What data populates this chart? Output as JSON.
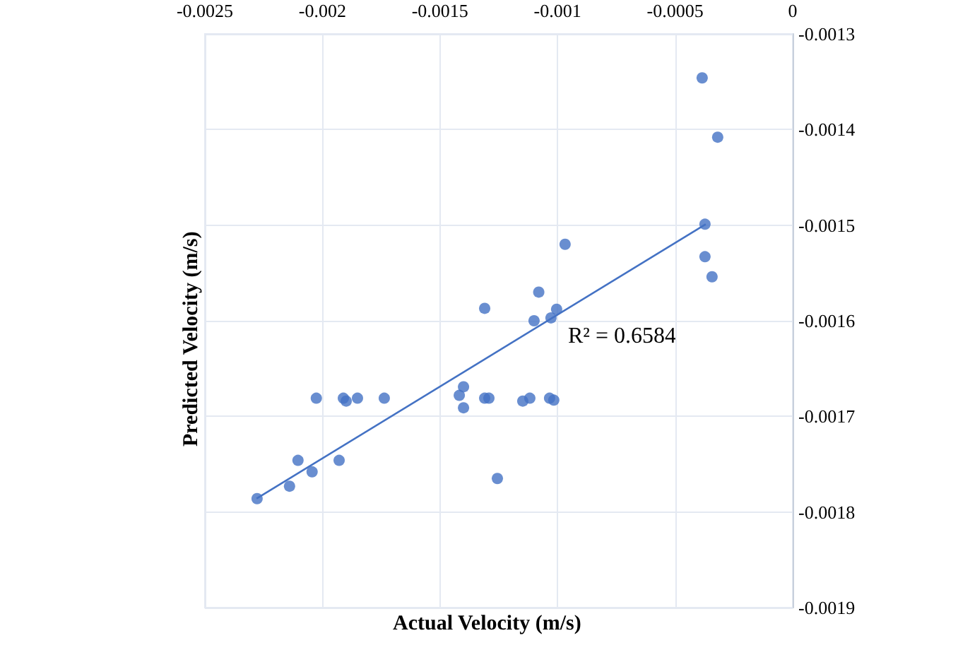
{
  "chart_data": {
    "type": "scatter",
    "xlabel": "Actual Velocity (m/s)",
    "ylabel": "Predicted Velocity (m/s)",
    "annotations": [
      "R² = 0.6584"
    ],
    "xlim": [
      -0.0025,
      0
    ],
    "xticks": [
      -0.0025,
      -0.002,
      -0.0015,
      -0.001,
      -0.0005,
      0
    ],
    "ylim": [
      -0.0019,
      -0.0013
    ],
    "yticks": [
      -0.0019,
      -0.0018,
      -0.0017,
      -0.0016,
      -0.0015,
      -0.0014,
      -0.0013
    ],
    "grid": true,
    "marker": "circle",
    "series": [
      {
        "color": "#4472c4",
        "x": [
          -0.000385,
          -0.000319,
          -0.000373,
          -0.000373,
          -0.000343,
          -0.000968,
          -0.00108,
          -0.001004,
          -0.0011,
          -0.001028,
          -0.00131,
          -0.002026,
          -0.001911,
          -0.001899,
          -0.001851,
          -0.001737,
          -0.001418,
          -0.0014,
          -0.0014,
          -0.00131,
          -0.001292,
          -0.001148,
          -0.001118,
          -0.001034,
          -0.001016,
          -0.002104,
          -0.002044,
          -0.00214,
          -0.002278,
          -0.001929,
          -0.001256
        ],
        "values": [
          -0.001346,
          -0.001408,
          -0.001499,
          -0.001533,
          -0.001554,
          -0.00152,
          -0.00157,
          -0.001588,
          -0.0016,
          -0.001597,
          -0.001587,
          -0.001681,
          -0.001681,
          -0.001684,
          -0.001681,
          -0.001681,
          -0.001678,
          -0.001669,
          -0.001691,
          -0.001681,
          -0.001681,
          -0.001684,
          -0.001681,
          -0.001681,
          -0.001683,
          -0.001746,
          -0.001758,
          -0.001773,
          -0.001786,
          -0.001746,
          -0.001765
        ]
      },
      {
        "type": "line",
        "color": "#4472c4",
        "marker": "none",
        "x": [
          -0.00228,
          -0.00037
        ],
        "values": [
          -0.001786,
          -0.001499
        ]
      }
    ]
  }
}
